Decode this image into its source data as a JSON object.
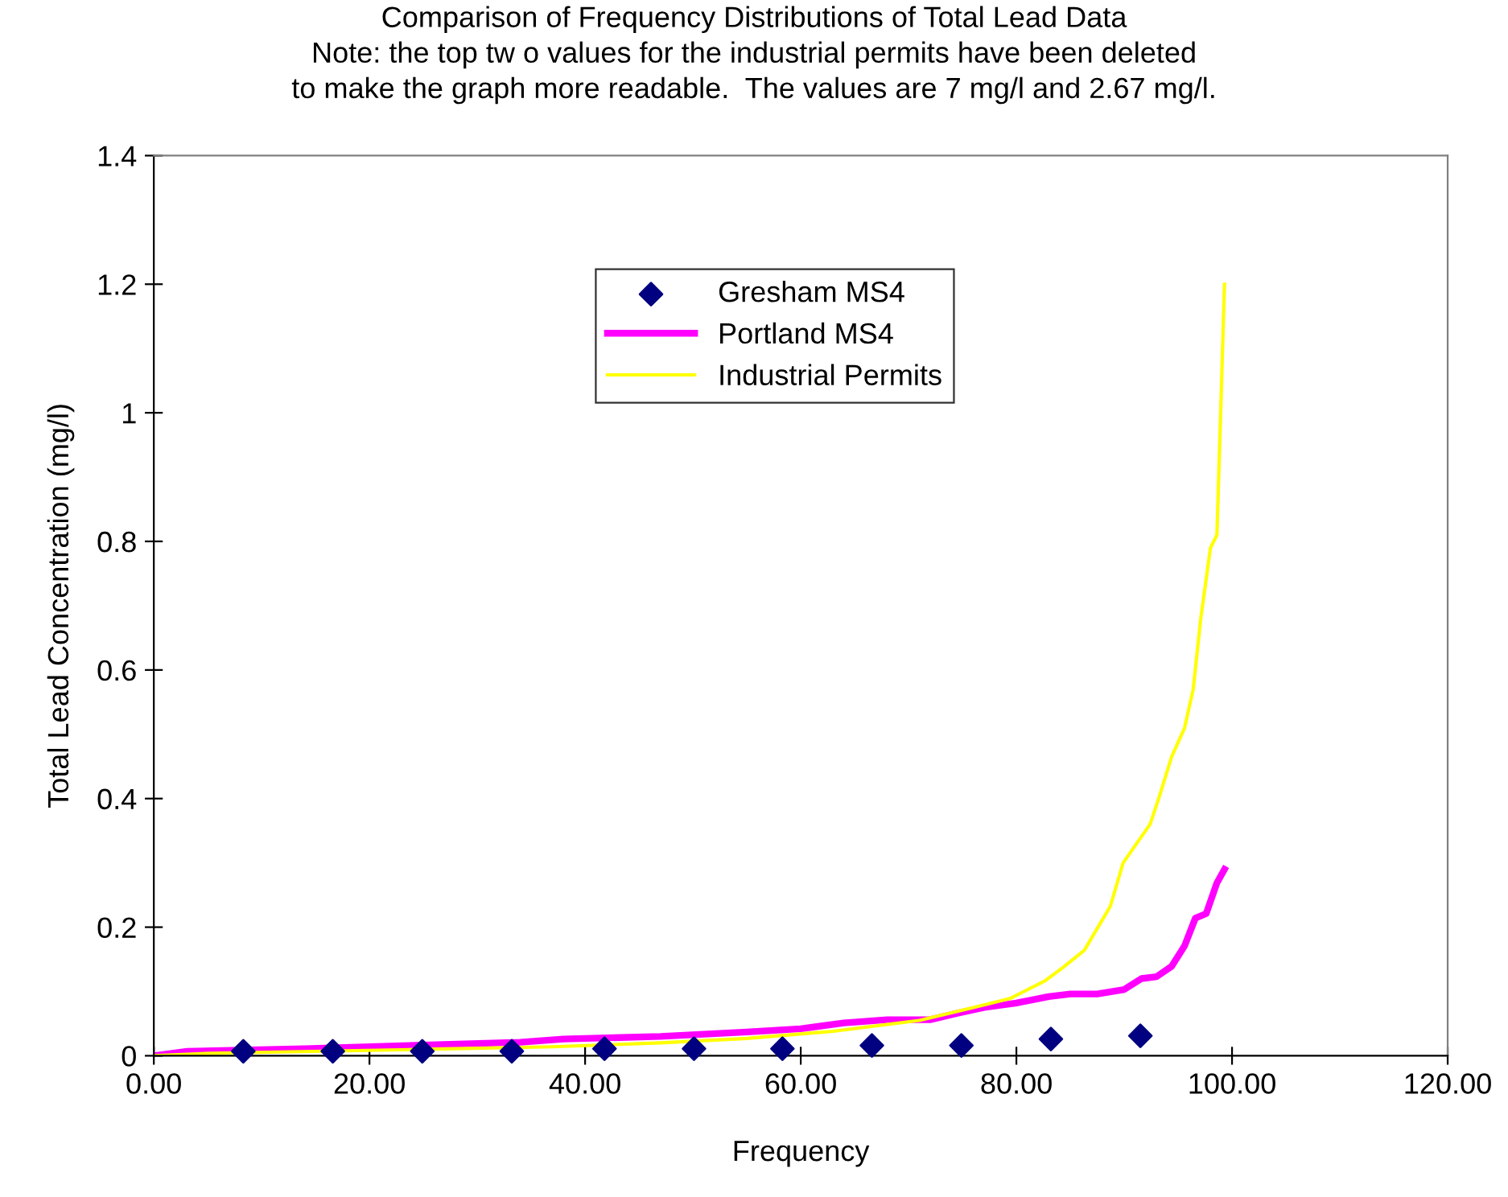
{
  "chart_data": {
    "type": "line",
    "title": "Comparison of Frequency Distributions of Total Lead Data\nNote: the top tw o values for the industrial permits have been deleted\nto make the graph more readable.  The values are 7 mg/l and 2.67 mg/l.",
    "xlabel": "Frequency",
    "ylabel": "Total Lead Concentration (mg/l)",
    "xlim": [
      0,
      120
    ],
    "xticks": [
      {
        "value": 0,
        "label": "0.00"
      },
      {
        "value": 20,
        "label": "20.00"
      },
      {
        "value": 40,
        "label": "40.00"
      },
      {
        "value": 60,
        "label": "60.00"
      },
      {
        "value": 80,
        "label": "80.00"
      },
      {
        "value": 100,
        "label": "100.00"
      },
      {
        "value": 120,
        "label": "120.00"
      }
    ],
    "ylim": [
      0,
      1.4
    ],
    "yticks": [
      0,
      0.2,
      0.4,
      0.6,
      0.8,
      1,
      1.2,
      1.4
    ],
    "grid": false,
    "legend": "top",
    "series": [
      {
        "name": "Gresham MS4",
        "type": "scatter",
        "marker": "diamond",
        "color": "#000080",
        "x": [
          8.3,
          16.6,
          24.9,
          33.2,
          41.8,
          50.1,
          58.3,
          66.6,
          74.9,
          83.2,
          91.5
        ],
        "values": [
          0.007,
          0.007,
          0.007,
          0.007,
          0.011,
          0.011,
          0.011,
          0.016,
          0.016,
          0.026,
          0.031
        ]
      },
      {
        "name": "Portland MS4",
        "marker": "none",
        "color": "#ff00ff",
        "x": [
          0,
          3.1,
          14,
          34,
          38,
          47,
          55,
          60,
          64,
          68,
          72,
          74.5,
          77,
          80,
          83,
          85,
          87.5,
          90,
          91.6,
          93,
          94.4,
          95.6,
          96.6,
          97.6,
          98.6,
          99.3
        ],
        "values": [
          0,
          0.007,
          0.011,
          0.021,
          0.026,
          0.03,
          0.037,
          0.042,
          0.051,
          0.056,
          0.056,
          0.066,
          0.075,
          0.082,
          0.092,
          0.096,
          0.096,
          0.103,
          0.12,
          0.123,
          0.139,
          0.171,
          0.214,
          0.221,
          0.269,
          0.29
        ]
      },
      {
        "name": "Industrial Permits",
        "marker": "none",
        "color": "#ffff00",
        "x": [
          0,
          5.5,
          25,
          37,
          47,
          55,
          63,
          71,
          76,
          79.4,
          82.6,
          84.3,
          86.3,
          87.5,
          88.7,
          89.9,
          92.4,
          93.2,
          94.4,
          95.6,
          96.4,
          97.1,
          98,
          98.6,
          99,
          99.3
        ],
        "values": [
          0,
          0.004,
          0.01,
          0.014,
          0.02,
          0.027,
          0.038,
          0.055,
          0.075,
          0.089,
          0.116,
          0.137,
          0.164,
          0.198,
          0.232,
          0.3,
          0.36,
          0.4,
          0.465,
          0.51,
          0.57,
          0.68,
          0.79,
          0.81,
          1.03,
          1.2
        ]
      }
    ]
  }
}
